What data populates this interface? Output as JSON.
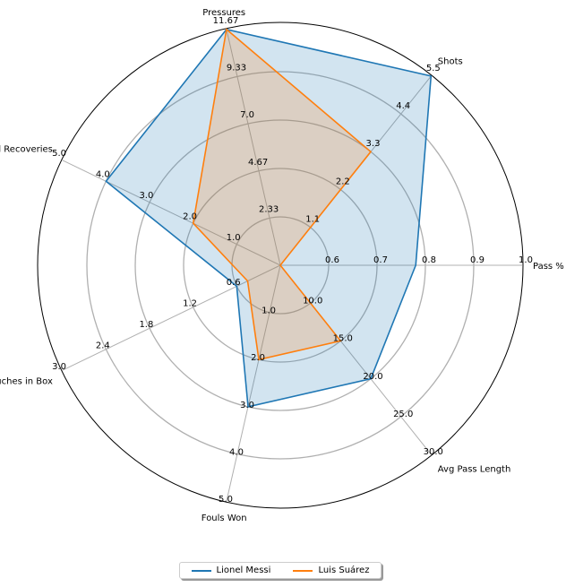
{
  "chart_data": {
    "type": "radar",
    "axes": [
      {
        "label": "Pass %",
        "ticks": [
          "0.6",
          "0.7",
          "0.8",
          "0.9",
          "1.0"
        ],
        "range": [
          0.5,
          1.0
        ]
      },
      {
        "label": "Shots",
        "ticks": [
          "1.1",
          "2.2",
          "3.3",
          "4.4",
          "5.5"
        ],
        "range": [
          0,
          5.5
        ]
      },
      {
        "label": "Pressures",
        "ticks": [
          "2.33",
          "4.67",
          "7.0",
          "9.33",
          "11.67"
        ],
        "range": [
          0,
          11.67
        ]
      },
      {
        "label": "Ball Recoveries",
        "ticks": [
          "1.0",
          "2.0",
          "3.0",
          "4.0",
          "5.0"
        ],
        "range": [
          0,
          5.0
        ]
      },
      {
        "label": "Touches in Box",
        "ticks": [
          "0.6",
          "1.2",
          "1.8",
          "2.4",
          "3.0"
        ],
        "range": [
          0,
          3.0
        ]
      },
      {
        "label": "Fouls Won",
        "ticks": [
          "1.0",
          "2.0",
          "3.0",
          "4.0",
          "5.0"
        ],
        "range": [
          0,
          5.0
        ]
      },
      {
        "label": "Avg Pass Length",
        "ticks": [
          "10.0",
          "15.0",
          "20.0",
          "25.0",
          "30.0"
        ],
        "range": [
          5.0,
          30.0
        ]
      }
    ],
    "series": [
      {
        "name": "Lionel Messi",
        "color": "#1f77b4",
        "values": [
          0.78,
          5.5,
          11.67,
          4.0,
          0.6,
          3.0,
          20.0
        ]
      },
      {
        "name": "Luis Suárez",
        "color": "#ff7f0e",
        "values": [
          0.5,
          3.3,
          11.67,
          2.0,
          0.45,
          2.0,
          15.0
        ]
      }
    ],
    "legend": "bottom-center",
    "grid": true
  }
}
